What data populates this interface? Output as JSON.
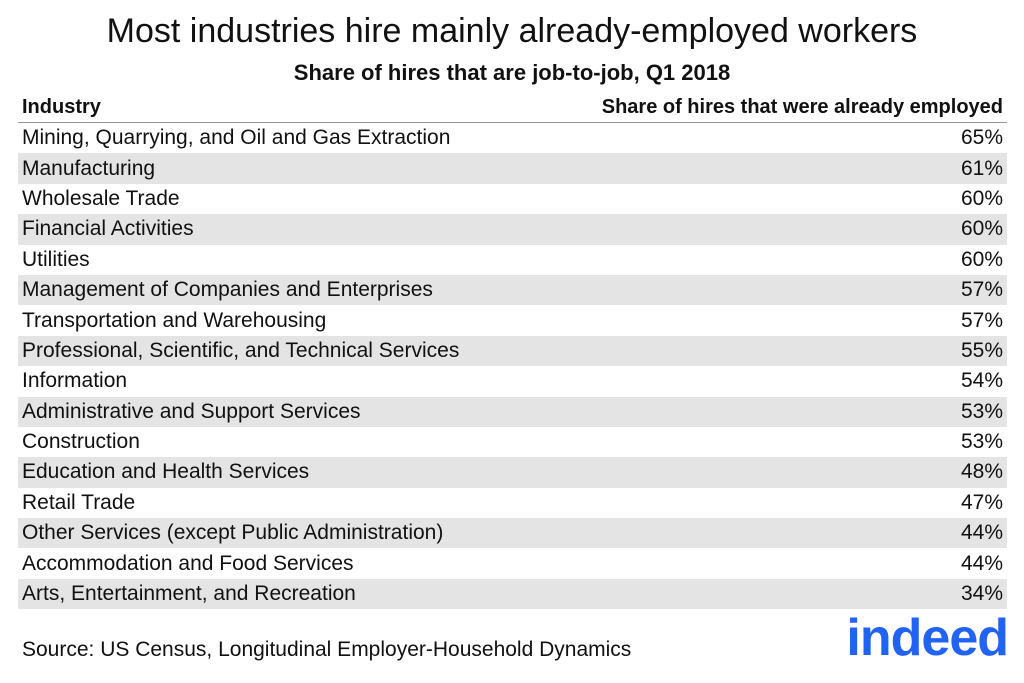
{
  "header": {
    "title": "Most industries hire mainly already-employed workers",
    "subtitle": "Share of hires that are job-to-job, Q1 2018"
  },
  "table": {
    "columns": [
      "Industry",
      "Share of hires that were already employed"
    ],
    "rows": [
      [
        "Mining, Quarrying, and Oil and Gas Extraction",
        "65%"
      ],
      [
        "Manufacturing",
        "61%"
      ],
      [
        "Wholesale Trade",
        "60%"
      ],
      [
        "Financial Activities",
        "60%"
      ],
      [
        "Utilities",
        "60%"
      ],
      [
        "Management of Companies and Enterprises",
        "57%"
      ],
      [
        "Transportation and Warehousing",
        "57%"
      ],
      [
        "Professional, Scientific, and Technical Services",
        "55%"
      ],
      [
        "Information",
        "54%"
      ],
      [
        "Administrative and Support Services",
        "53%"
      ],
      [
        "Construction",
        "53%"
      ],
      [
        "Education and Health Services",
        "48%"
      ],
      [
        "Retail Trade",
        "47%"
      ],
      [
        "Other Services (except Public Administration)",
        "44%"
      ],
      [
        "Accommodation and Food Services",
        "44%"
      ],
      [
        "Arts, Entertainment, and Recreation",
        "34%"
      ]
    ]
  },
  "footer": {
    "source": "Source: US Census, Longitudinal Employer-Household Dynamics",
    "logo": "indeed"
  }
}
